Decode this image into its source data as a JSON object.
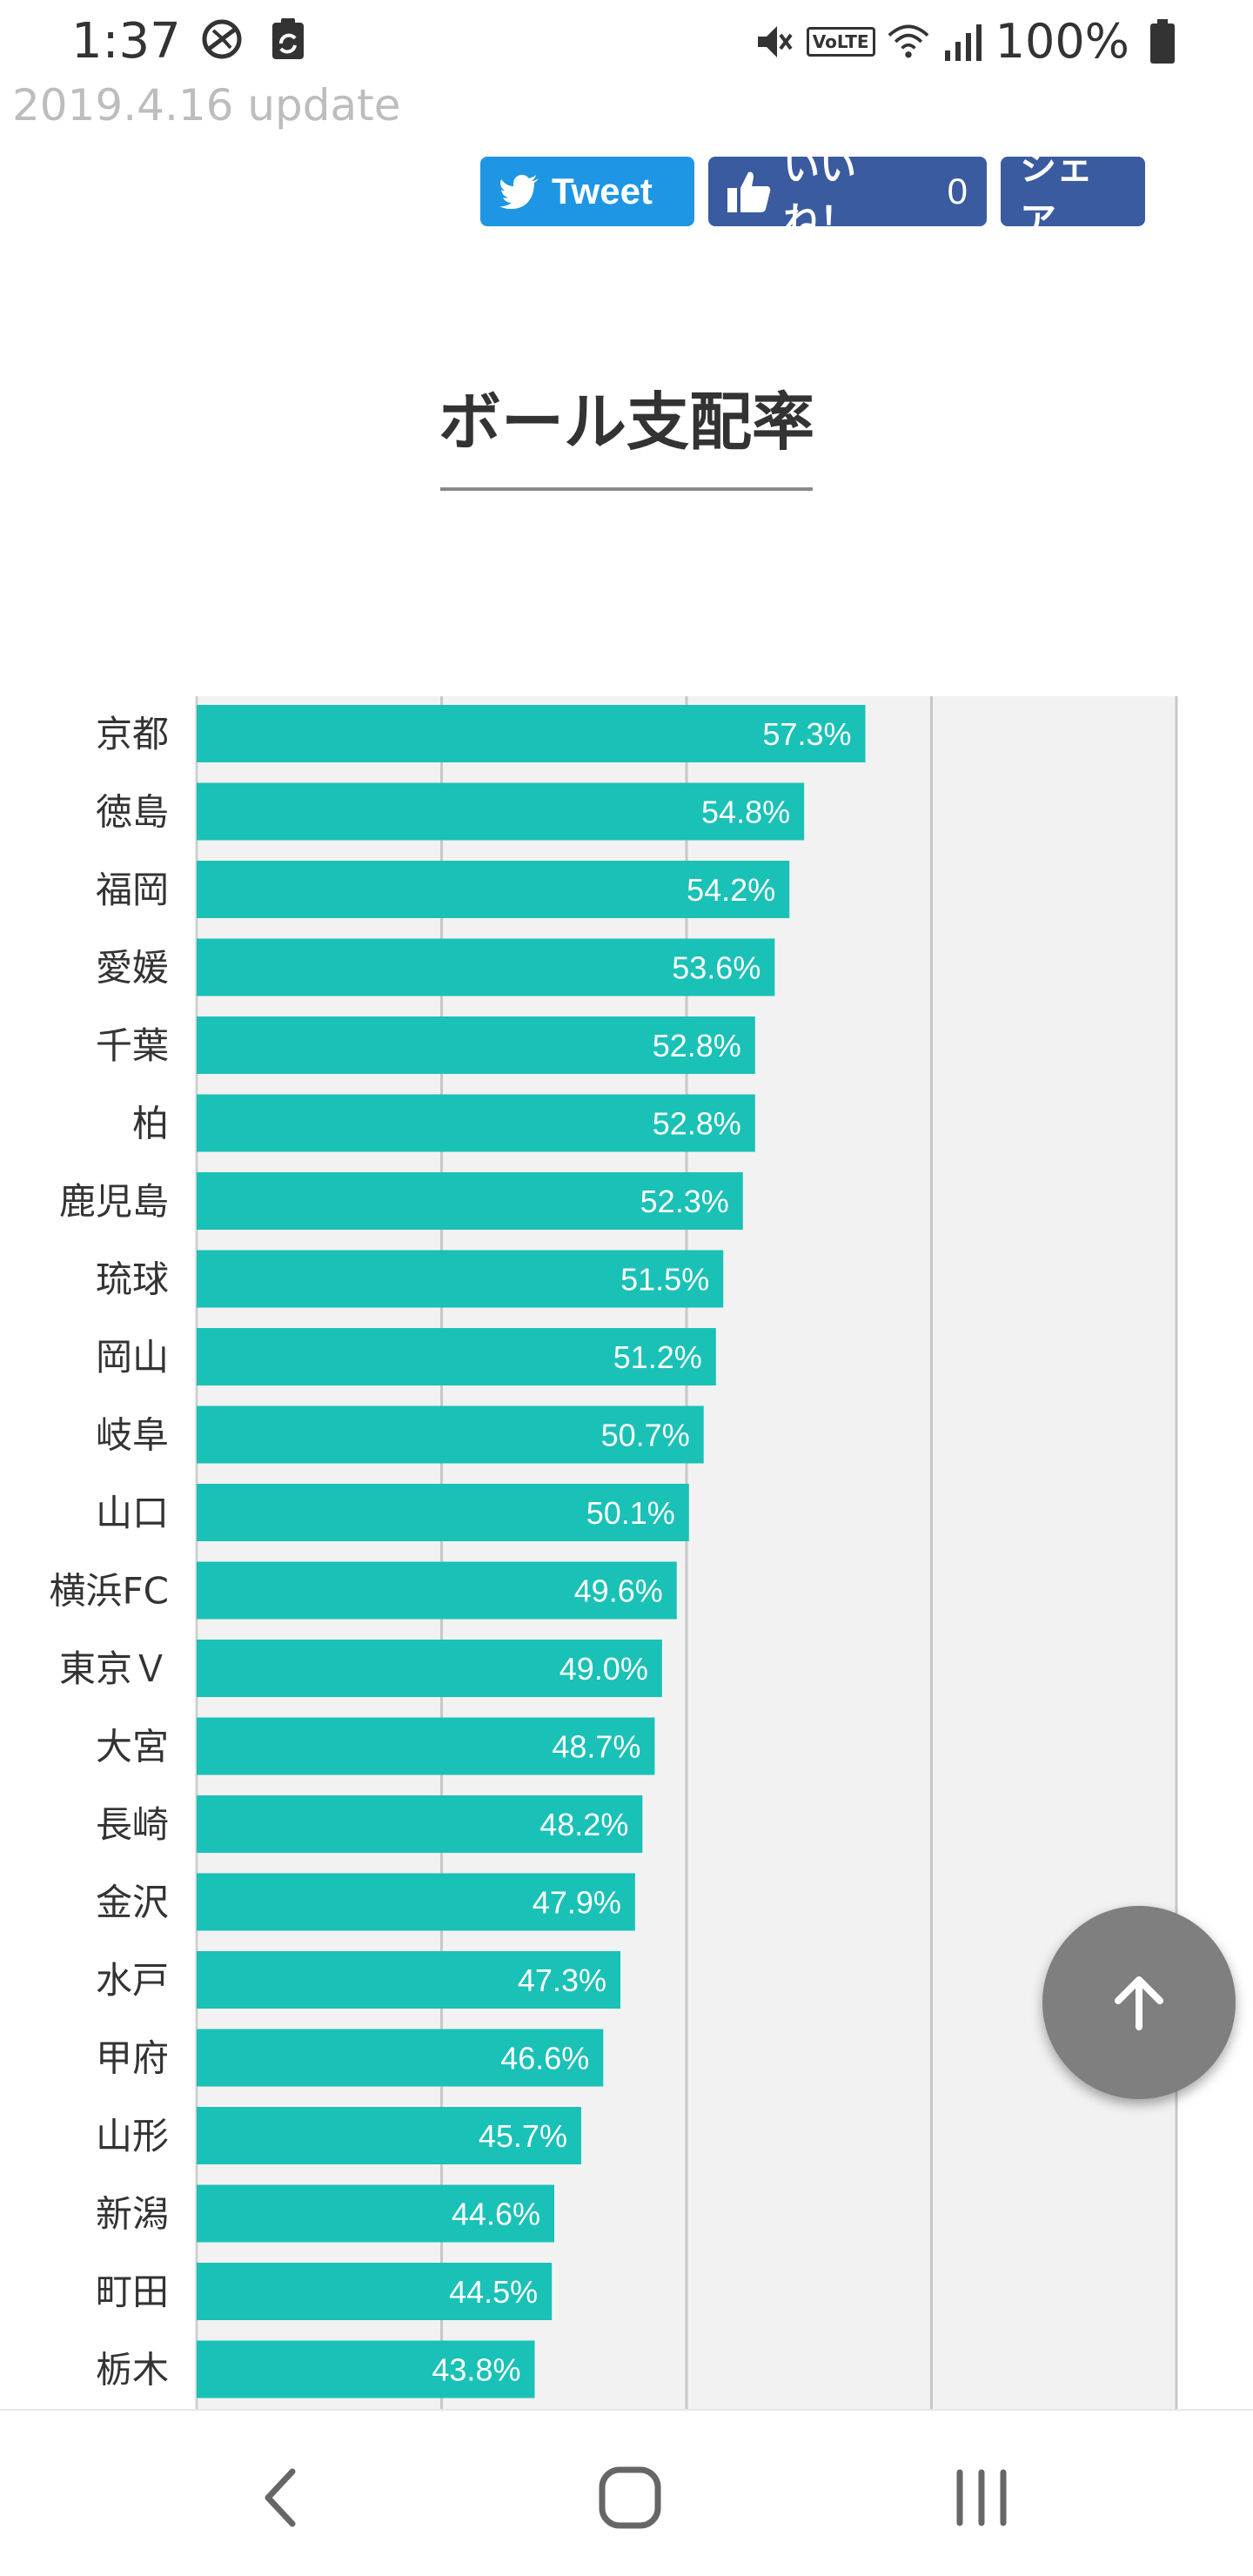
{
  "status_bar": {
    "time": "1:37",
    "battery": "100%",
    "icons": [
      "pinwheel-icon",
      "clipboard-sync-icon",
      "mute-icon",
      "volte-icon",
      "wifi-icon",
      "signal-icon",
      "battery-icon"
    ],
    "volte_label": "VoLTE"
  },
  "update_text": "2019.4.16 update",
  "share": {
    "tweet_label": "Tweet",
    "like_label": "いいね！",
    "like_count": "0",
    "share_label": "シェア"
  },
  "colors": {
    "bar": "#1ac1b6",
    "plot_bg": "#f2f2f2",
    "gridline": "#c8c8c8",
    "tweet": "#1e96e4",
    "facebook": "#3b5ba0",
    "fab": "#7f7f7f"
  },
  "chart_data": {
    "type": "bar",
    "orientation": "horizontal",
    "title": "ボール支配率",
    "categories": [
      "京都",
      "徳島",
      "福岡",
      "愛媛",
      "千葉",
      "柏",
      "鹿児島",
      "琉球",
      "岡山",
      "岐阜",
      "山口",
      "横浜FC",
      "東京Ｖ",
      "大宮",
      "長崎",
      "金沢",
      "水戸",
      "甲府",
      "山形",
      "新潟",
      "町田",
      "栃木"
    ],
    "values": [
      57.3,
      54.8,
      54.2,
      53.6,
      52.8,
      52.8,
      52.3,
      51.5,
      51.2,
      50.7,
      50.1,
      49.6,
      49.0,
      48.7,
      48.2,
      47.9,
      47.3,
      46.6,
      45.7,
      44.6,
      44.5,
      43.8
    ],
    "value_labels": [
      "57.3%",
      "54.8%",
      "54.2%",
      "53.6%",
      "52.8%",
      "52.8%",
      "52.3%",
      "51.5%",
      "51.2%",
      "50.7%",
      "50.1%",
      "49.6%",
      "49.0%",
      "48.7%",
      "48.2%",
      "47.9%",
      "47.3%",
      "46.6%",
      "45.7%",
      "44.6%",
      "44.5%",
      "43.8%"
    ],
    "xlim": [
      30,
      70
    ],
    "grid": true,
    "xlabel": "",
    "ylabel": ""
  }
}
